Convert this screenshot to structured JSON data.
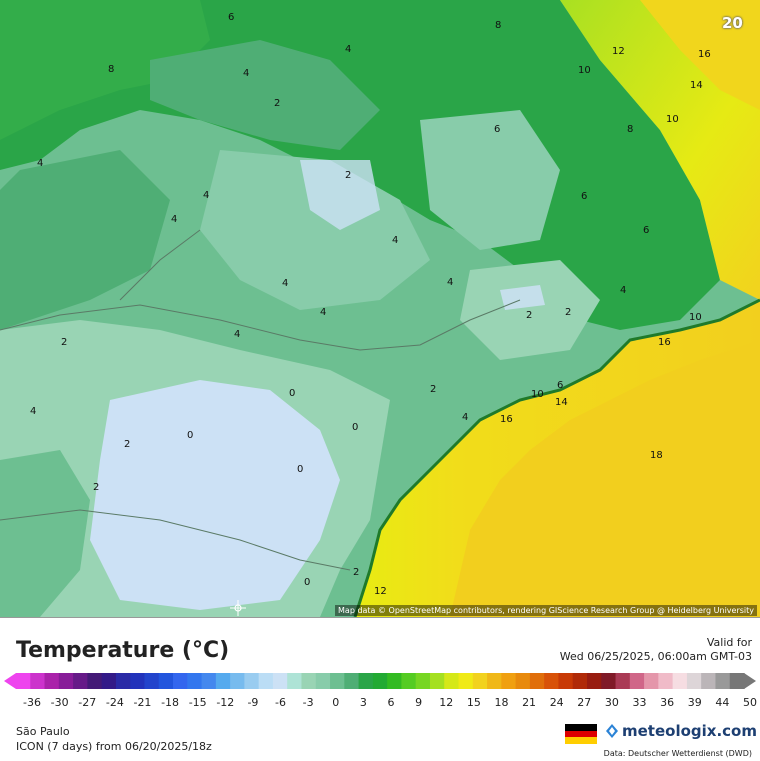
{
  "map": {
    "step_number": "20",
    "attribution": "Map data © OpenStreetMap contributors, rendering GIScience Research Group @ Heidelberg University",
    "contour_labels": [
      "6",
      "8",
      "4",
      "2",
      "12",
      "16",
      "10",
      "14",
      "18",
      "0"
    ],
    "colors": {
      "ocean_warm": "#f2d21e",
      "ocean_coast": "#e5ea10",
      "land_green": "#2aa548",
      "land_mid": "#6dbf91",
      "land_cool": "#99d4b4",
      "land_cold": "#cce1f5"
    }
  },
  "legend": {
    "title": "Temperature (°C)",
    "valid_label": "Valid for",
    "valid_time": "Wed 06/25/2025, 06:00am GMT-03",
    "ticks": [
      "-36",
      "-30",
      "-27",
      "-24",
      "-21",
      "-18",
      "-15",
      "-12",
      "-9",
      "-6",
      "-3",
      "0",
      "3",
      "6",
      "9",
      "12",
      "15",
      "18",
      "21",
      "24",
      "27",
      "30",
      "33",
      "36",
      "39",
      "44",
      "50"
    ],
    "colors": [
      "#ee44ee",
      "#cc33cc",
      "#aa22aa",
      "#881c99",
      "#661a88",
      "#441a77",
      "#331a88",
      "#2a2aa6",
      "#2233bb",
      "#2244cc",
      "#2255dd",
      "#3366ee",
      "#3377ee",
      "#4488ee",
      "#55aaee",
      "#77bbee",
      "#99ccf0",
      "#bbddf5",
      "#cce1f5",
      "#aee3d6",
      "#99d4b4",
      "#88ccaa",
      "#6dbf91",
      "#4fae75",
      "#2aa548",
      "#22aa33",
      "#33bb22",
      "#55cc22",
      "#77d622",
      "#a5e020",
      "#d5e818",
      "#f0ea16",
      "#f2d21e",
      "#f0b818",
      "#f0a010",
      "#e88a0c",
      "#e06e0a",
      "#d85208",
      "#c83a06",
      "#b02a08",
      "#981c10",
      "#801a28",
      "#aa3a55",
      "#d06688",
      "#e496aa",
      "#f0bbc8",
      "#f6dde2",
      "#ddd5d8",
      "#bbb5b8",
      "#999",
      "#777"
    ]
  },
  "footer": {
    "region": "São Paulo",
    "model_run": "ICON (7 days) from 06/20/2025/18z",
    "brand": "meteologix.com",
    "data_credit": "Data: Deutscher Wetterdienst (DWD)"
  }
}
